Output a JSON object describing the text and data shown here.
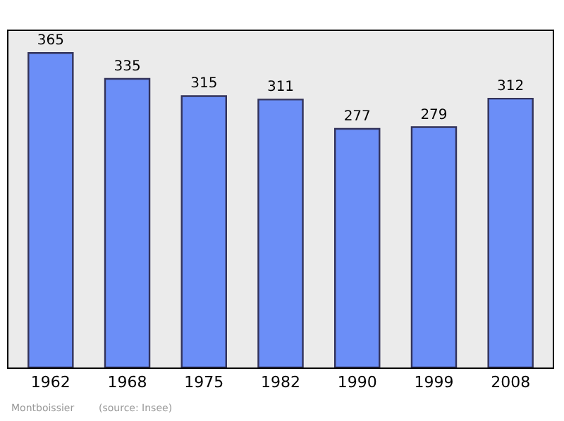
{
  "chart_data": {
    "type": "bar",
    "categories": [
      "1962",
      "1968",
      "1975",
      "1982",
      "1990",
      "1999",
      "2008"
    ],
    "values": [
      365,
      335,
      315,
      311,
      277,
      279,
      312
    ],
    "color": "#6b8ef7",
    "data_labels": true,
    "grid": false,
    "legend": false,
    "annotations": [
      "Montboissier",
      "(source: Insee)"
    ]
  }
}
